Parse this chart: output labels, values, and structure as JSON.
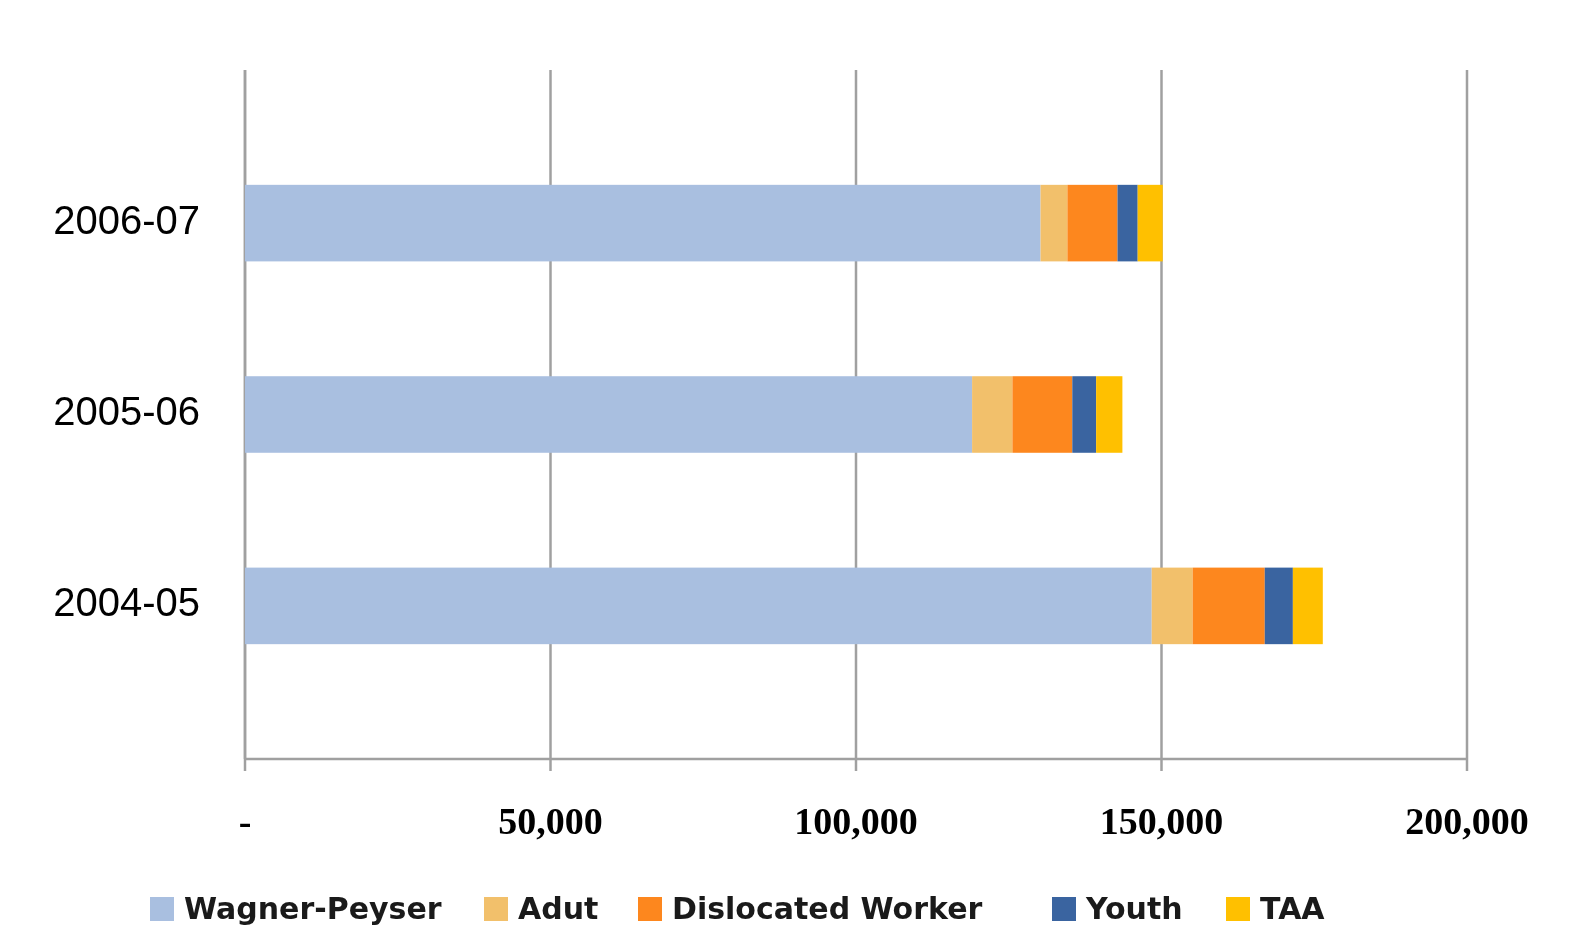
{
  "chart_data": {
    "type": "bar",
    "orientation": "horizontal",
    "stacked": true,
    "categories": [
      "2006-07",
      "2005-06",
      "2004-05"
    ],
    "series": [
      {
        "name": "Wagner-Peyser",
        "color": "#a9bfe0",
        "values": [
          130200,
          119000,
          148400
        ]
      },
      {
        "name": "Adut",
        "color": "#f2c06b",
        "values": [
          4400,
          6600,
          6700
        ]
      },
      {
        "name": "Dislocated Worker",
        "color": "#fd871e",
        "values": [
          8200,
          9800,
          11800
        ]
      },
      {
        "name": "Youth",
        "color": "#3a64a0",
        "values": [
          3300,
          3900,
          4600
        ]
      },
      {
        "name": "TAA",
        "color": "#ffc000",
        "values": [
          4100,
          4300,
          4900
        ]
      }
    ],
    "xlim": [
      0,
      200000
    ],
    "xticks": [
      {
        "value": 0,
        "label": "-"
      },
      {
        "value": 50000,
        "label": "50,000"
      },
      {
        "value": 100000,
        "label": "100,000"
      },
      {
        "value": 150000,
        "label": "150,000"
      },
      {
        "value": 200000,
        "label": "200,000"
      }
    ],
    "grid": "x",
    "legend": "bottom"
  }
}
